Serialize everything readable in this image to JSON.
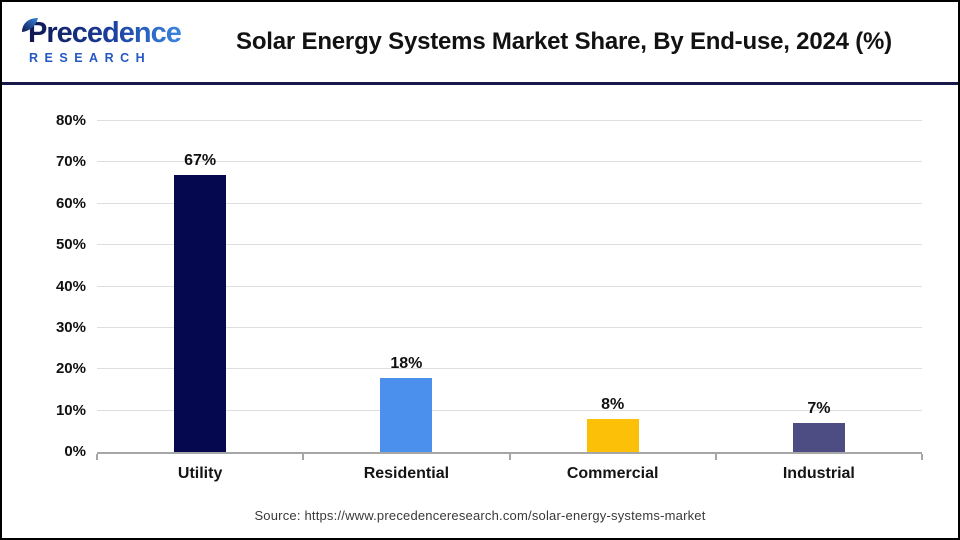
{
  "theme": {
    "divider": "#18184A",
    "axis": "#A6A6A6",
    "gridline": "#DEDEDE",
    "source_text": "#3A3A3A",
    "logo_primary": "#0E1650",
    "logo_secondary": "#3B86E0",
    "background": "#FFFFFF",
    "border": "#000000"
  },
  "header": {
    "logo": {
      "wordmark": "Precedence",
      "subtext": "RESEARCH"
    },
    "title": "Solar Energy Systems Market Share, By End-use, 2024 (%)"
  },
  "chart_data": {
    "type": "bar",
    "title": "Solar Energy Systems Market Share, By End-use, 2024 (%)",
    "categories": [
      "Utility",
      "Residential",
      "Commercial",
      "Industrial"
    ],
    "values": [
      67,
      18,
      8,
      7
    ],
    "value_labels": [
      "67%",
      "18%",
      "8%",
      "7%"
    ],
    "bar_colors": [
      "#05084F",
      "#4A90EC",
      "#FDC008",
      "#4D4D84"
    ],
    "xlabel": "",
    "ylabel": "",
    "ylim": [
      0,
      80
    ],
    "ytick_labels": [
      "0%",
      "10%",
      "20%",
      "30%",
      "40%",
      "50%",
      "60%",
      "70%",
      "80%"
    ],
    "grid": true,
    "legend": false
  },
  "footer": {
    "source": "Source: https://www.precedenceresearch.com/solar-energy-systems-market"
  }
}
